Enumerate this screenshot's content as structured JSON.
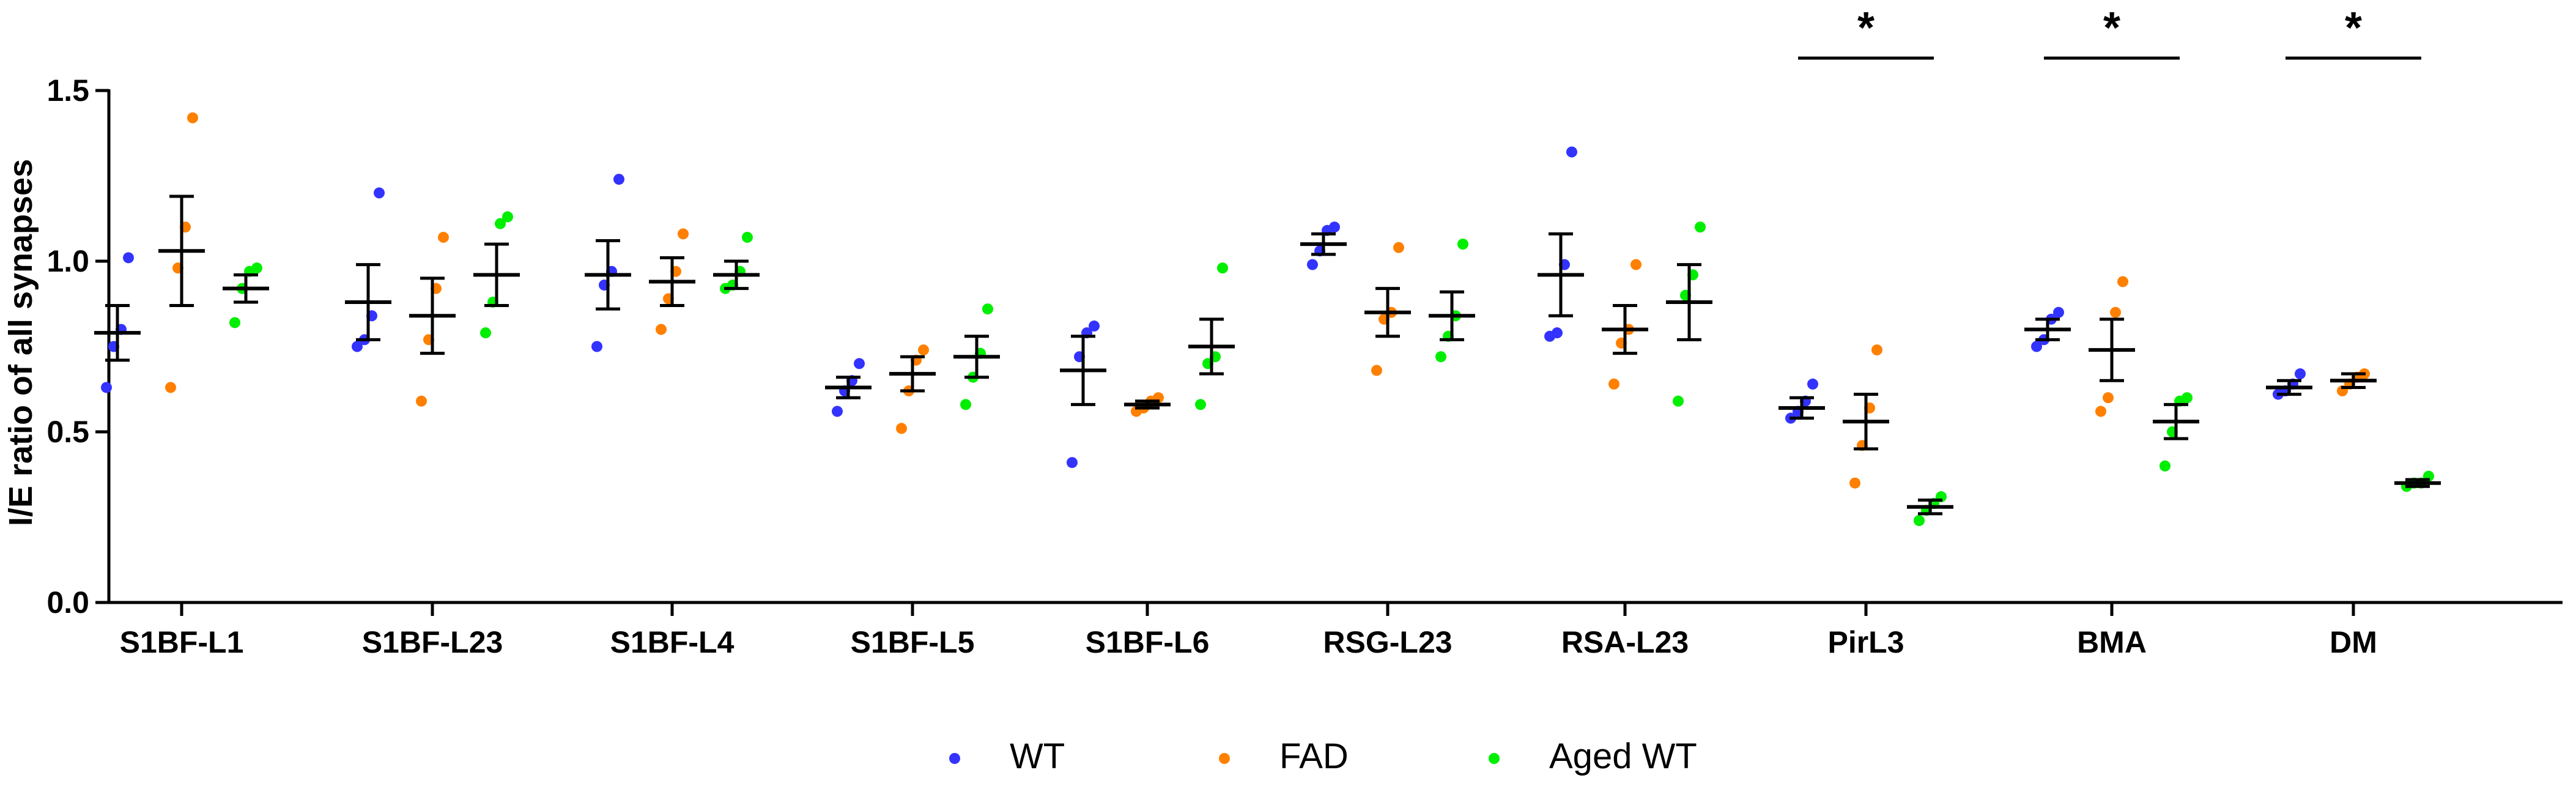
{
  "chart_data": {
    "type": "scatter",
    "title": "",
    "xlabel": "",
    "ylabel": "I/E ratio of all synapses",
    "ylim": [
      0,
      1.5
    ],
    "yticks": [
      "0.0",
      "0.5",
      "1.0",
      "1.5"
    ],
    "grid": false,
    "legend_position": "bottom-center",
    "categories": [
      "S1BF-L1",
      "S1BF-L23",
      "S1BF-L4",
      "S1BF-L5",
      "S1BF-L6",
      "RSG-L23",
      "RSA-L23",
      "PirL3",
      "BMA",
      "DM"
    ],
    "significance": [
      {
        "category": "PirL3",
        "label": "*"
      },
      {
        "category": "BMA",
        "label": "*"
      },
      {
        "category": "DM",
        "label": "*"
      }
    ],
    "series": [
      {
        "name": "WT",
        "color": "#3333ff",
        "points": [
          [
            0.63,
            0.75,
            0.8,
            1.01
          ],
          [
            0.75,
            0.77,
            0.84,
            1.2
          ],
          [
            0.75,
            0.93,
            0.97,
            1.24
          ],
          [
            0.56,
            0.62,
            0.65,
            0.7
          ],
          [
            0.41,
            0.72,
            0.79,
            0.81
          ],
          [
            0.99,
            1.03,
            1.09,
            1.1
          ],
          [
            0.78,
            0.79,
            0.99,
            1.32
          ],
          [
            0.54,
            0.56,
            0.59,
            0.64
          ],
          [
            0.75,
            0.77,
            0.83,
            0.85
          ],
          [
            0.61,
            0.62,
            0.64,
            0.67
          ]
        ],
        "mean": [
          0.79,
          0.88,
          0.96,
          0.63,
          0.68,
          1.05,
          0.96,
          0.57,
          0.8,
          0.63
        ],
        "sem": [
          0.08,
          0.11,
          0.1,
          0.03,
          0.1,
          0.03,
          0.12,
          0.03,
          0.03,
          0.02
        ]
      },
      {
        "name": "FAD",
        "color": "#ff8000",
        "points": [
          [
            0.63,
            0.98,
            1.1,
            1.42
          ],
          [
            0.59,
            0.77,
            0.92,
            1.07
          ],
          [
            0.8,
            0.89,
            0.97,
            1.08
          ],
          [
            0.51,
            0.62,
            0.71,
            0.74
          ],
          [
            0.56,
            0.57,
            0.59,
            0.6
          ],
          [
            0.68,
            0.83,
            0.85,
            1.04
          ],
          [
            0.64,
            0.76,
            0.8,
            0.99
          ],
          [
            0.35,
            0.46,
            0.57,
            0.74
          ],
          [
            0.56,
            0.6,
            0.85,
            0.94
          ],
          [
            0.62,
            0.64,
            0.66,
            0.67
          ]
        ],
        "mean": [
          1.03,
          0.84,
          0.94,
          0.67,
          0.58,
          0.85,
          0.8,
          0.53,
          0.74,
          0.65
        ],
        "sem": [
          0.16,
          0.11,
          0.07,
          0.05,
          0.01,
          0.07,
          0.07,
          0.08,
          0.09,
          0.02
        ]
      },
      {
        "name": "Aged WT",
        "color": "#00ee00",
        "points": [
          [
            0.82,
            0.92,
            0.97,
            0.98
          ],
          [
            0.79,
            0.88,
            1.11,
            1.13
          ],
          [
            0.92,
            0.93,
            0.97,
            1.07
          ],
          [
            0.58,
            0.66,
            0.73,
            0.86
          ],
          [
            0.58,
            0.7,
            0.72,
            0.98
          ],
          [
            0.72,
            0.78,
            0.84,
            1.05
          ],
          [
            0.59,
            0.9,
            0.96,
            1.1
          ],
          [
            0.24,
            0.27,
            0.29,
            0.31
          ],
          [
            0.4,
            0.5,
            0.59,
            0.6
          ],
          [
            0.34,
            0.35,
            0.35,
            0.37
          ]
        ],
        "mean": [
          0.92,
          0.96,
          0.96,
          0.72,
          0.75,
          0.84,
          0.88,
          0.28,
          0.53,
          0.35
        ],
        "sem": [
          0.04,
          0.09,
          0.04,
          0.06,
          0.08,
          0.07,
          0.11,
          0.02,
          0.05,
          0.01
        ]
      }
    ]
  }
}
